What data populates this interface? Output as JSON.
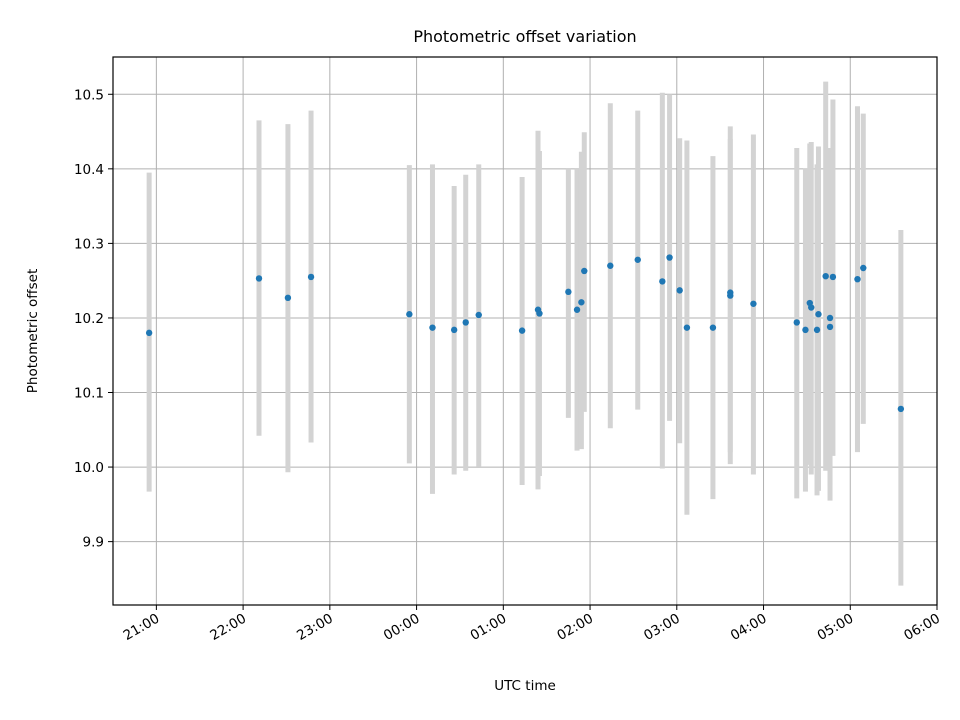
{
  "chart_data": {
    "type": "scatter",
    "title": "Photometric offset variation",
    "xlabel": "UTC time",
    "ylabel": "Photometric offset",
    "x_tick_labels": [
      "21:00",
      "22:00",
      "23:00",
      "00:00",
      "01:00",
      "02:00",
      "03:00",
      "04:00",
      "05:00",
      "06:00"
    ],
    "y_tick_labels": [
      "9.9",
      "10.0",
      "10.1",
      "10.2",
      "10.3",
      "10.4",
      "10.5"
    ],
    "xlim": [
      "20:30",
      "06:00"
    ],
    "ylim": [
      9.815,
      10.55
    ],
    "grid": true,
    "colors": {
      "point": "#1f77b4",
      "errorbar": "#d3d3d3",
      "grid": "#b0b0b0"
    },
    "points": [
      {
        "t": "20:55",
        "y": 10.18,
        "lo": 9.967,
        "hi": 10.395
      },
      {
        "t": "22:11",
        "y": 10.253,
        "lo": 10.042,
        "hi": 10.465
      },
      {
        "t": "22:31",
        "y": 10.227,
        "lo": 9.993,
        "hi": 10.46
      },
      {
        "t": "22:47",
        "y": 10.255,
        "lo": 10.033,
        "hi": 10.478
      },
      {
        "t": "23:55",
        "y": 10.205,
        "lo": 10.005,
        "hi": 10.405
      },
      {
        "t": "00:11",
        "y": 10.187,
        "lo": 9.964,
        "hi": 10.406
      },
      {
        "t": "00:26",
        "y": 10.184,
        "lo": 9.99,
        "hi": 10.377
      },
      {
        "t": "00:34",
        "y": 10.194,
        "lo": 9.995,
        "hi": 10.392
      },
      {
        "t": "00:43",
        "y": 10.204,
        "lo": 10.001,
        "hi": 10.406
      },
      {
        "t": "01:13",
        "y": 10.183,
        "lo": 9.976,
        "hi": 10.389
      },
      {
        "t": "01:24",
        "y": 10.211,
        "lo": 9.97,
        "hi": 10.451
      },
      {
        "t": "01:25",
        "y": 10.206,
        "lo": 9.988,
        "hi": 10.424
      },
      {
        "t": "01:45",
        "y": 10.235,
        "lo": 10.066,
        "hi": 10.4
      },
      {
        "t": "01:51",
        "y": 10.211,
        "lo": 10.022,
        "hi": 10.4
      },
      {
        "t": "01:54",
        "y": 10.221,
        "lo": 10.024,
        "hi": 10.423
      },
      {
        "t": "01:56",
        "y": 10.263,
        "lo": 10.074,
        "hi": 10.449
      },
      {
        "t": "02:14",
        "y": 10.27,
        "lo": 10.052,
        "hi": 10.488
      },
      {
        "t": "02:33",
        "y": 10.278,
        "lo": 10.077,
        "hi": 10.478
      },
      {
        "t": "02:50",
        "y": 10.249,
        "lo": 9.998,
        "hi": 10.502
      },
      {
        "t": "02:55",
        "y": 10.281,
        "lo": 10.062,
        "hi": 10.5
      },
      {
        "t": "03:02",
        "y": 10.237,
        "lo": 10.032,
        "hi": 10.441
      },
      {
        "t": "03:07",
        "y": 10.187,
        "lo": 9.936,
        "hi": 10.438
      },
      {
        "t": "03:25",
        "y": 10.187,
        "lo": 9.957,
        "hi": 10.417
      },
      {
        "t": "03:37",
        "y": 10.23,
        "lo": 10.004,
        "hi": 10.457
      },
      {
        "t": "03:37",
        "y": 10.234,
        "lo": 10.02,
        "hi": 10.44
      },
      {
        "t": "03:53",
        "y": 10.219,
        "lo": 9.99,
        "hi": 10.446
      },
      {
        "t": "04:23",
        "y": 10.194,
        "lo": 9.958,
        "hi": 10.428
      },
      {
        "t": "04:29",
        "y": 10.184,
        "lo": 9.967,
        "hi": 10.401
      },
      {
        "t": "04:32",
        "y": 10.22,
        "lo": 10.003,
        "hi": 10.434
      },
      {
        "t": "04:33",
        "y": 10.214,
        "lo": 9.99,
        "hi": 10.436
      },
      {
        "t": "04:37",
        "y": 10.184,
        "lo": 9.962,
        "hi": 10.406
      },
      {
        "t": "04:38",
        "y": 10.205,
        "lo": 9.968,
        "hi": 10.43
      },
      {
        "t": "04:43",
        "y": 10.256,
        "lo": 9.995,
        "hi": 10.517
      },
      {
        "t": "04:46",
        "y": 10.188,
        "lo": 9.955,
        "hi": 10.428
      },
      {
        "t": "04:46",
        "y": 10.2,
        "lo": 9.975,
        "hi": 10.425
      },
      {
        "t": "04:48",
        "y": 10.255,
        "lo": 10.015,
        "hi": 10.493
      },
      {
        "t": "05:05",
        "y": 10.252,
        "lo": 10.02,
        "hi": 10.484
      },
      {
        "t": "05:09",
        "y": 10.267,
        "lo": 10.058,
        "hi": 10.474
      },
      {
        "t": "05:35",
        "y": 10.078,
        "lo": 9.841,
        "hi": 10.318
      }
    ]
  }
}
